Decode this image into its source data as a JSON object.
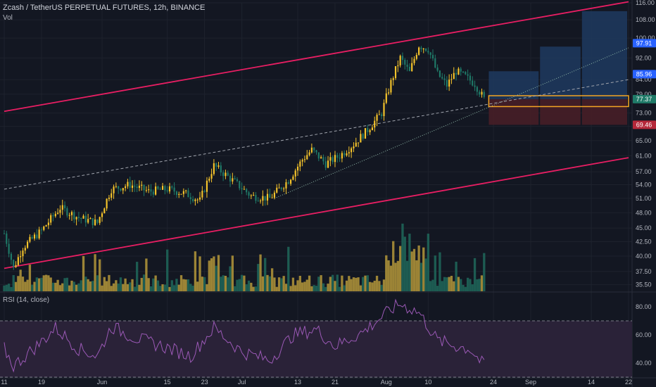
{
  "header": {
    "symbol_title": "Zcash / TetherUS PERPETUAL FUTURES, 12h, BINANCE",
    "volume_label": "Vol",
    "rsi_label": "RSI (14, close)"
  },
  "colors": {
    "background": "#131722",
    "grid": "#1e222d",
    "text": "#b2b5be",
    "bull": "#f7c52b",
    "bear": "#1f7a68",
    "vol_bull": "#9c8436",
    "vol_bear": "#1d5c52",
    "channel": "#e91e63",
    "rsi_line": "#9b59b6",
    "rsi_band": "#2a2238",
    "long_target": "#1f3a5f",
    "stop_zone": "#4a1e27",
    "entry_box": "#f5a623",
    "badge_blue": "#2962ff",
    "badge_red": "#b5283a",
    "badge_green": "#1f7a68"
  },
  "chart_data": {
    "type": "candlestick",
    "title": "Zcash / TetherUS PERPETUAL FUTURES, 12h, BINANCE",
    "interval": "12h",
    "exchange": "BINANCE",
    "scale": "log",
    "price_axis": {
      "range": [
        34.5,
        116
      ],
      "ticks": [
        35.5,
        37.5,
        40.0,
        42.5,
        45.0,
        48.0,
        51.0,
        54.0,
        57.0,
        61.0,
        65.0,
        69.0,
        73.0,
        79.0,
        84.0,
        92.0,
        100.0,
        108.0,
        116.0
      ]
    },
    "x_axis": {
      "start_date": "2021-05-11",
      "end_date": "2021-09-22",
      "tick_labels": [
        {
          "label": "11",
          "date": "2021-05-11"
        },
        {
          "label": "19",
          "date": "2021-05-19"
        },
        {
          "label": "Jun",
          "date": "2021-06-01"
        },
        {
          "label": "15",
          "date": "2021-06-15"
        },
        {
          "label": "23",
          "date": "2021-06-23"
        },
        {
          "label": "Jul",
          "date": "2021-07-01"
        },
        {
          "label": "13",
          "date": "2021-07-13"
        },
        {
          "label": "21",
          "date": "2021-07-21"
        },
        {
          "label": "Aug",
          "date": "2021-08-01"
        },
        {
          "label": "10",
          "date": "2021-08-10"
        },
        {
          "label": "24",
          "date": "2021-08-24"
        },
        {
          "label": "Sep",
          "date": "2021-09-01"
        },
        {
          "label": "14",
          "date": "2021-09-14"
        },
        {
          "label": "22",
          "date": "2021-09-22"
        }
      ]
    },
    "price_anchors": [
      {
        "date": "2021-05-11",
        "close": 44.0
      },
      {
        "date": "2021-05-13",
        "close": 38.0
      },
      {
        "date": "2021-05-15",
        "close": 41.5
      },
      {
        "date": "2021-05-19",
        "close": 44.5
      },
      {
        "date": "2021-05-23",
        "close": 49.0
      },
      {
        "date": "2021-05-27",
        "close": 47.0
      },
      {
        "date": "2021-05-31",
        "close": 46.0
      },
      {
        "date": "2021-06-03",
        "close": 53.0
      },
      {
        "date": "2021-06-07",
        "close": 54.0
      },
      {
        "date": "2021-06-11",
        "close": 52.5
      },
      {
        "date": "2021-06-15",
        "close": 53.0
      },
      {
        "date": "2021-06-19",
        "close": 52.0
      },
      {
        "date": "2021-06-22",
        "close": 50.5
      },
      {
        "date": "2021-06-25",
        "close": 58.5
      },
      {
        "date": "2021-06-29",
        "close": 55.0
      },
      {
        "date": "2021-07-03",
        "close": 51.5
      },
      {
        "date": "2021-07-07",
        "close": 51.0
      },
      {
        "date": "2021-07-11",
        "close": 55.0
      },
      {
        "date": "2021-07-14",
        "close": 60.0
      },
      {
        "date": "2021-07-16",
        "close": 62.5
      },
      {
        "date": "2021-07-19",
        "close": 59.0
      },
      {
        "date": "2021-07-22",
        "close": 61.0
      },
      {
        "date": "2021-07-25",
        "close": 64.0
      },
      {
        "date": "2021-07-28",
        "close": 68.0
      },
      {
        "date": "2021-07-31",
        "close": 73.0
      },
      {
        "date": "2021-08-02",
        "close": 83.0
      },
      {
        "date": "2021-08-04",
        "close": 92.0
      },
      {
        "date": "2021-08-06",
        "close": 86.5
      },
      {
        "date": "2021-08-08",
        "close": 97.0
      },
      {
        "date": "2021-08-10",
        "close": 95.5
      },
      {
        "date": "2021-08-12",
        "close": 86.0
      },
      {
        "date": "2021-08-14",
        "close": 82.0
      },
      {
        "date": "2021-08-16",
        "close": 87.0
      },
      {
        "date": "2021-08-18",
        "close": 85.0
      },
      {
        "date": "2021-08-20",
        "close": 82.5
      },
      {
        "date": "2021-08-22",
        "close": 77.4
      }
    ],
    "current_price": {
      "label": "77.37",
      "value": 77.37
    },
    "price_badges": [
      {
        "label": "97.91",
        "value": 97.91,
        "color": "blue"
      },
      {
        "label": "85.96",
        "value": 85.96,
        "color": "blue"
      },
      {
        "label": "69.46",
        "value": 69.46,
        "color": "red"
      }
    ],
    "channel_lines": [
      {
        "from": {
          "date": "2021-05-11",
          "value": 73.5
        },
        "to": {
          "date": "2021-09-22",
          "value": 116.5
        }
      },
      {
        "from": {
          "date": "2021-05-11",
          "value": 38.0
        },
        "to": {
          "date": "2021-09-22",
          "value": 60.5
        }
      }
    ],
    "dashed_midline": {
      "from": {
        "date": "2021-05-11",
        "value": 53.0
      },
      "to": {
        "date": "2021-09-22",
        "value": 84.0
      }
    },
    "dotted_trendline": {
      "from": {
        "date": "2021-07-08",
        "value": 51.0
      },
      "to": {
        "date": "2021-09-22",
        "value": 96.0
      }
    },
    "position_tool": {
      "entry": 77.37,
      "entry_band": [
        75.0,
        78.5
      ],
      "stop": 69.46,
      "start_date": "2021-08-23",
      "targets": [
        {
          "value": 87.0,
          "from": "2021-08-23",
          "to": "2021-09-03"
        },
        {
          "value": 96.5,
          "from": "2021-09-03",
          "to": "2021-09-12"
        },
        {
          "value": 112.0,
          "from": "2021-09-12",
          "to": "2021-09-22"
        }
      ]
    },
    "volume": {
      "label": "Vol",
      "color_by_direction": true
    },
    "rsi": {
      "label": "RSI (14, close)",
      "length": 14,
      "range": [
        30,
        90
      ],
      "ticks": [
        40.0,
        60.0,
        80.0
      ],
      "band": [
        30,
        70
      ],
      "anchors": [
        {
          "date": "2021-05-11",
          "value": 50
        },
        {
          "date": "2021-05-13",
          "value": 38
        },
        {
          "date": "2021-05-19",
          "value": 55
        },
        {
          "date": "2021-05-22",
          "value": 65
        },
        {
          "date": "2021-05-27",
          "value": 50
        },
        {
          "date": "2021-05-31",
          "value": 45
        },
        {
          "date": "2021-06-03",
          "value": 66
        },
        {
          "date": "2021-06-08",
          "value": 58
        },
        {
          "date": "2021-06-14",
          "value": 52
        },
        {
          "date": "2021-06-20",
          "value": 45
        },
        {
          "date": "2021-06-25",
          "value": 65
        },
        {
          "date": "2021-07-01",
          "value": 48
        },
        {
          "date": "2021-07-07",
          "value": 42
        },
        {
          "date": "2021-07-12",
          "value": 60
        },
        {
          "date": "2021-07-17",
          "value": 64
        },
        {
          "date": "2021-07-21",
          "value": 52
        },
        {
          "date": "2021-07-27",
          "value": 62
        },
        {
          "date": "2021-08-02",
          "value": 78
        },
        {
          "date": "2021-08-04",
          "value": 82
        },
        {
          "date": "2021-08-08",
          "value": 76
        },
        {
          "date": "2021-08-12",
          "value": 56
        },
        {
          "date": "2021-08-16",
          "value": 52
        },
        {
          "date": "2021-08-19",
          "value": 50
        },
        {
          "date": "2021-08-22",
          "value": 38
        }
      ]
    }
  }
}
